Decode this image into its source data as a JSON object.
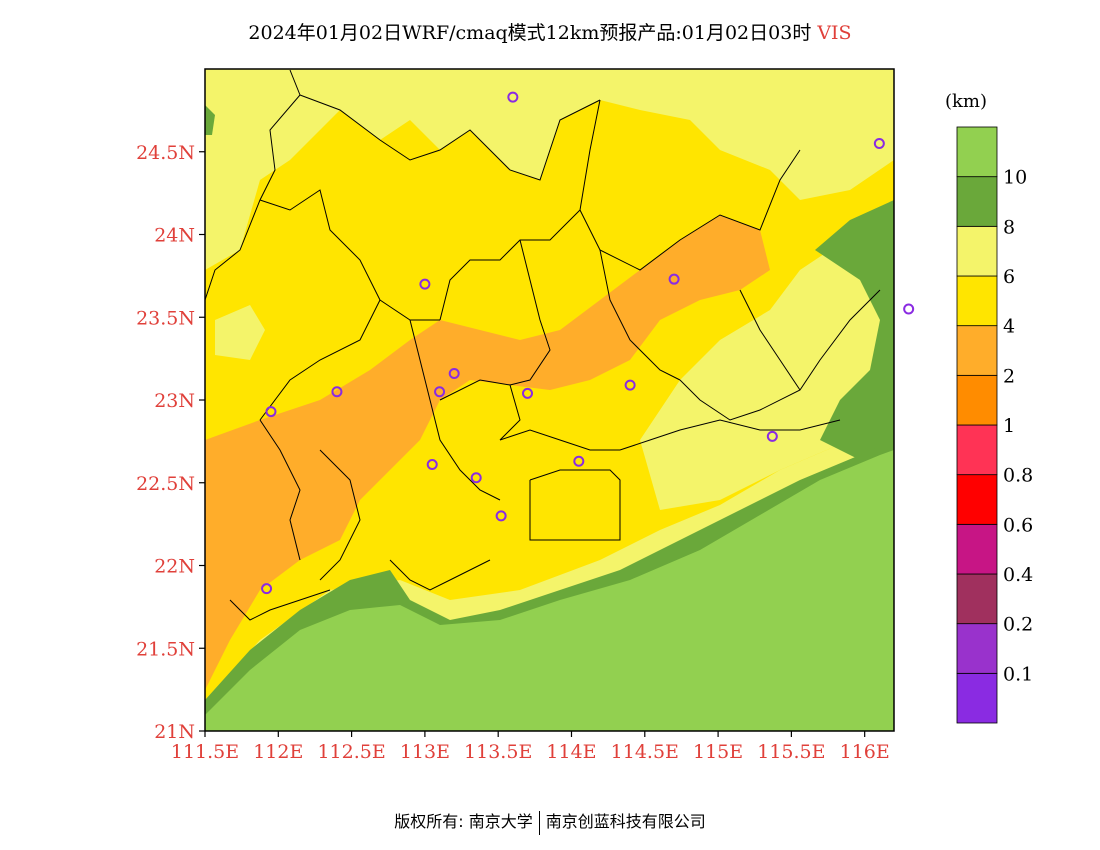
{
  "title": {
    "main": "2024年01月02日WRF/cmaq模式12km预报产品:01月02日03时",
    "variable": "VIS"
  },
  "map": {
    "lat_ticks": [
      "24.5N",
      "24N",
      "23.5N",
      "23N",
      "22.5N",
      "22N",
      "21.5N",
      "21N"
    ],
    "lon_ticks": [
      "111.5E",
      "112E",
      "112.5E",
      "113E",
      "113.5E",
      "114E",
      "114.5E",
      "115E",
      "115.5E",
      "116E"
    ],
    "lon_range": [
      111.5,
      116.2
    ],
    "lat_range": [
      21.0,
      25.0
    ],
    "tick_color": "#e0403a",
    "station_marker_color": "#8a2be2",
    "stations": [
      {
        "lon": 113.6,
        "lat": 24.83
      },
      {
        "lon": 116.1,
        "lat": 24.55
      },
      {
        "lon": 113.0,
        "lat": 23.7
      },
      {
        "lon": 114.7,
        "lat": 23.73
      },
      {
        "lon": 116.3,
        "lat": 23.55
      },
      {
        "lon": 113.2,
        "lat": 23.16
      },
      {
        "lon": 112.4,
        "lat": 23.05
      },
      {
        "lon": 113.1,
        "lat": 23.05
      },
      {
        "lon": 113.7,
        "lat": 23.04
      },
      {
        "lon": 114.4,
        "lat": 23.09
      },
      {
        "lon": 111.95,
        "lat": 22.93
      },
      {
        "lon": 115.37,
        "lat": 22.78
      },
      {
        "lon": 113.05,
        "lat": 22.61
      },
      {
        "lon": 113.35,
        "lat": 22.53
      },
      {
        "lon": 114.05,
        "lat": 22.63
      },
      {
        "lon": 113.52,
        "lat": 22.3
      },
      {
        "lon": 111.92,
        "lat": 21.86
      }
    ]
  },
  "legend": {
    "unit": "(km)",
    "colors": [
      "#8a2be2",
      "#9932cc",
      "#a0305e",
      "#c71585",
      "#ff0000",
      "#ff3355",
      "#ff8c00",
      "#ffad2a",
      "#ffe500",
      "#f4f46a",
      "#6aa83a",
      "#92d050"
    ],
    "labels": [
      "0.1",
      "0.2",
      "0.4",
      "0.6",
      "0.8",
      "1",
      "2",
      "4",
      "6",
      "8",
      "10"
    ]
  },
  "footer": {
    "left": "版权所有: 南京大学",
    "right": "南京创蓝科技有限公司"
  }
}
